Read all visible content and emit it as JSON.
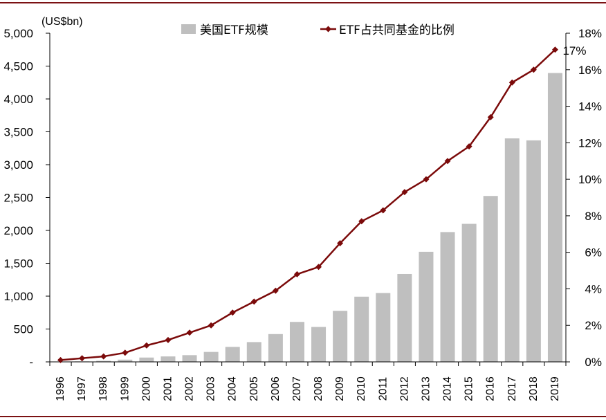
{
  "chart_data": {
    "type": "bar",
    "title": "",
    "categories": [
      "1996",
      "1997",
      "1998",
      "1999",
      "2000",
      "2001",
      "2002",
      "2003",
      "2004",
      "2005",
      "2006",
      "2007",
      "2008",
      "2009",
      "2010",
      "2011",
      "2012",
      "2013",
      "2014",
      "2015",
      "2016",
      "2017",
      "2018",
      "2019"
    ],
    "series": [
      {
        "name": "美国ETF规模",
        "type": "bar",
        "axis": "left",
        "color": "#BFBFBF",
        "values": [
          2,
          7,
          16,
          34,
          66,
          83,
          102,
          151,
          228,
          301,
          423,
          608,
          531,
          777,
          992,
          1048,
          1337,
          1675,
          1975,
          2100,
          2524,
          3400,
          3370,
          4395
        ]
      },
      {
        "name": "ETF占共同基金的比例",
        "type": "line",
        "axis": "right",
        "color": "#7B0A0A",
        "marker": "diamond",
        "values": [
          0.1,
          0.2,
          0.3,
          0.5,
          0.9,
          1.2,
          1.6,
          2.0,
          2.7,
          3.3,
          3.9,
          4.8,
          5.2,
          6.5,
          7.7,
          8.3,
          9.3,
          10.0,
          11.0,
          11.8,
          13.4,
          15.3,
          16.0,
          17.1
        ]
      }
    ],
    "y_left": {
      "label": "(US$bn)",
      "range": [
        0,
        5000
      ],
      "ticks": [
        0,
        500,
        1000,
        1500,
        2000,
        2500,
        3000,
        3500,
        4000,
        4500,
        5000
      ],
      "tick_labels": [
        "-",
        "500",
        "1,000",
        "1,500",
        "2,000",
        "2,500",
        "3,000",
        "3,500",
        "4,000",
        "4,500",
        "5,000"
      ]
    },
    "y_right": {
      "label": "",
      "range": [
        0,
        18
      ],
      "ticks": [
        0,
        2,
        4,
        6,
        8,
        10,
        12,
        14,
        16,
        18
      ],
      "tick_labels": [
        "0%",
        "2%",
        "4%",
        "6%",
        "8%",
        "10%",
        "12%",
        "14%",
        "16%",
        "18%"
      ]
    },
    "xlabel": "",
    "annotations": [
      {
        "text": "17%",
        "series": 1,
        "category": "2019"
      }
    ],
    "legend": "top-center",
    "grid": false
  },
  "colors": {
    "frame_rule": "#7B1113",
    "axis": "#000000"
  }
}
